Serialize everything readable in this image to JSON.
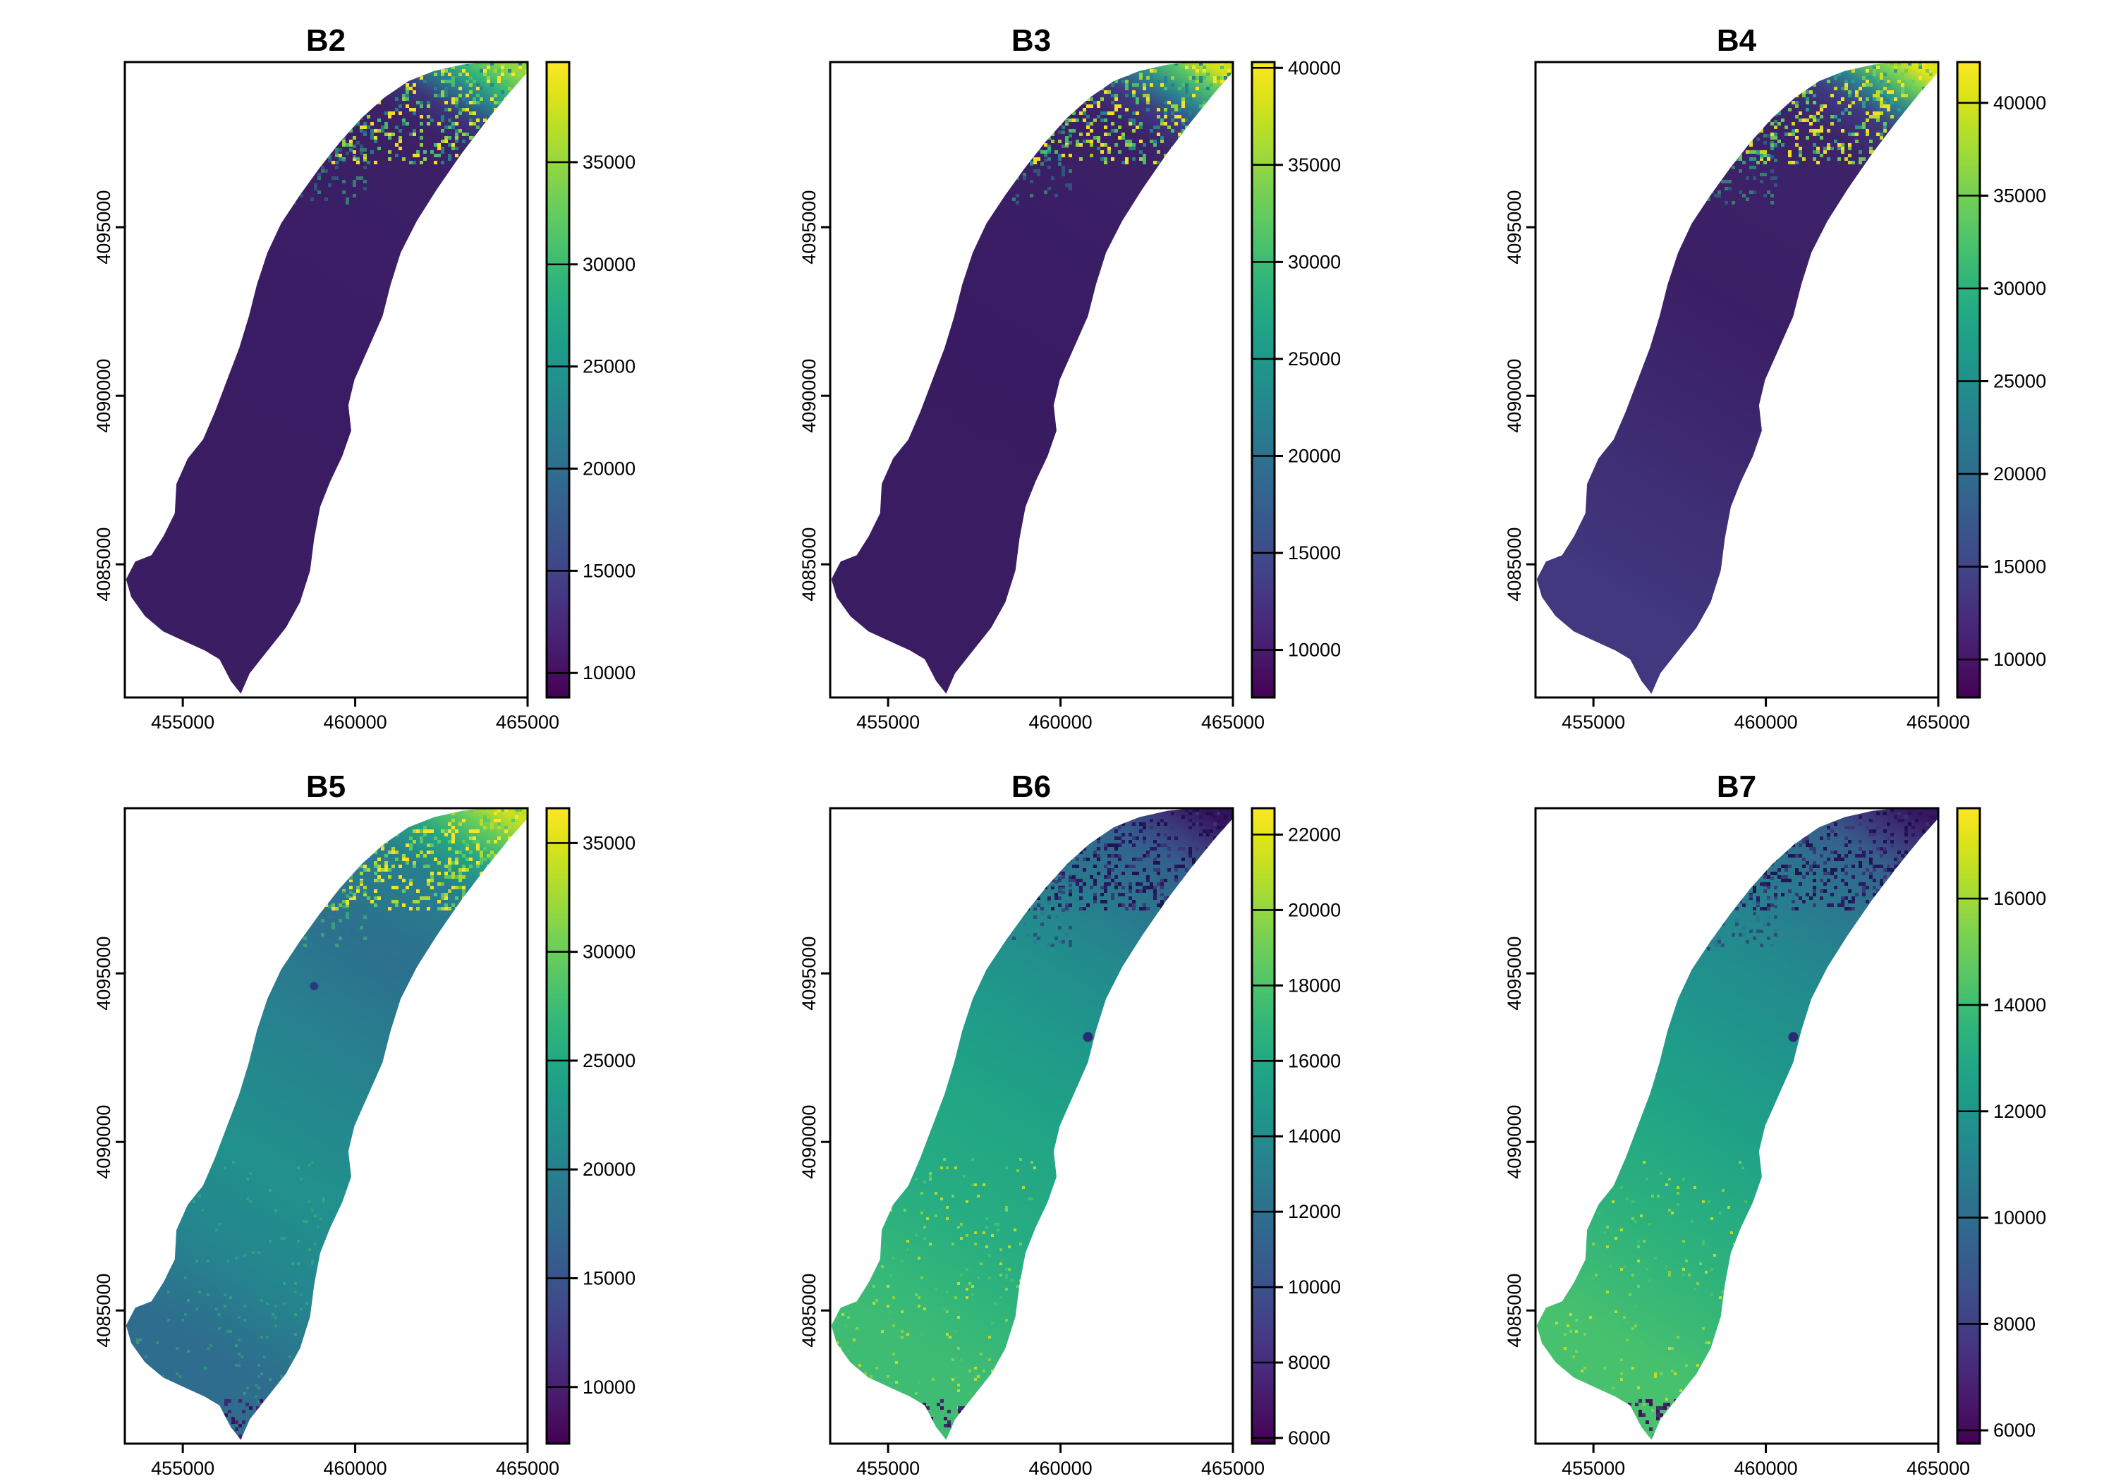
{
  "figure": {
    "background": "#ffffff",
    "panel_titles": [
      "B2",
      "B3",
      "B4",
      "B5",
      "B6",
      "B7"
    ]
  },
  "colorbar_palette": [
    "#440154",
    "#471365",
    "#482475",
    "#463480",
    "#414487",
    "#3b528b",
    "#355f8d",
    "#2f6c8e",
    "#2a788e",
    "#25848e",
    "#21918c",
    "#1e9c89",
    "#22a884",
    "#2eb37c",
    "#44bf70",
    "#5ec962",
    "#7ad151",
    "#9bd93c",
    "#bddf26",
    "#dfe318",
    "#fde725"
  ],
  "chart_data": [
    {
      "type": "heatmap",
      "title": "B2",
      "x_tick_values": [
        455000,
        460000,
        465000
      ],
      "y_tick_values": [
        4085000,
        4090000,
        4095000
      ],
      "x_range": [
        453320,
        465000
      ],
      "y_range": [
        4081050,
        4099900
      ],
      "colorbar": {
        "vmin": 8800,
        "vmax": 39900,
        "tick_values": [
          10000,
          15000,
          20000,
          25000,
          30000,
          35000
        ]
      },
      "body_gradient": [
        [
          0,
          "#90d743"
        ],
        [
          0.035,
          "#35b779"
        ],
        [
          0.07,
          "#287c8e"
        ],
        [
          0.11,
          "#3d3479"
        ],
        [
          0.16,
          "#3c2167"
        ],
        [
          0.55,
          "#3a1c64"
        ],
        [
          1,
          "#3a1d62"
        ]
      ],
      "overlays": [
        {
          "region": [
            46,
            0,
            54,
            16
          ],
          "colors": [
            "#fde725",
            "#9bd93c",
            "#4ac16d",
            "#26828e"
          ],
          "count": 520,
          "size": 5,
          "opacity": 0.95
        },
        {
          "region": [
            32,
            8,
            28,
            14
          ],
          "colors": [
            "#35b779",
            "#2a788e"
          ],
          "count": 130,
          "size": 5,
          "opacity": 0.6
        }
      ],
      "dots": []
    },
    {
      "type": "heatmap",
      "title": "B3",
      "x_tick_values": [
        455000,
        460000,
        465000
      ],
      "y_tick_values": [
        4085000,
        4090000,
        4095000
      ],
      "x_range": [
        453320,
        465000
      ],
      "y_range": [
        4081050,
        4099900
      ],
      "colorbar": {
        "vmin": 7550,
        "vmax": 40300,
        "tick_values": [
          10000,
          15000,
          20000,
          25000,
          30000,
          35000,
          40000
        ]
      },
      "body_gradient": [
        [
          0,
          "#d0e11c"
        ],
        [
          0.03,
          "#54c568"
        ],
        [
          0.07,
          "#2a818e"
        ],
        [
          0.11,
          "#3e3a80"
        ],
        [
          0.16,
          "#3c2167"
        ],
        [
          0.55,
          "#391b63"
        ],
        [
          1,
          "#391c61"
        ]
      ],
      "overlays": [
        {
          "region": [
            46,
            0,
            54,
            16
          ],
          "colors": [
            "#fde725",
            "#9bd93c",
            "#4ac16d",
            "#26828e"
          ],
          "count": 520,
          "size": 5,
          "opacity": 0.95
        },
        {
          "region": [
            32,
            8,
            28,
            14
          ],
          "colors": [
            "#35b779",
            "#2a788e"
          ],
          "count": 130,
          "size": 5,
          "opacity": 0.6
        }
      ],
      "dots": []
    },
    {
      "type": "heatmap",
      "title": "B4",
      "x_tick_values": [
        455000,
        460000,
        465000
      ],
      "y_tick_values": [
        4085000,
        4090000,
        4095000
      ],
      "x_range": [
        453320,
        465000
      ],
      "y_range": [
        4081050,
        4099900
      ],
      "colorbar": {
        "vmin": 7950,
        "vmax": 42200,
        "tick_values": [
          10000,
          15000,
          20000,
          25000,
          30000,
          35000,
          40000
        ]
      },
      "body_gradient": [
        [
          0,
          "#e5e419"
        ],
        [
          0.03,
          "#6ece58"
        ],
        [
          0.07,
          "#2d828e"
        ],
        [
          0.11,
          "#3e3a80"
        ],
        [
          0.17,
          "#3d2369"
        ],
        [
          0.5,
          "#3b1f66"
        ],
        [
          0.78,
          "#3e2d74"
        ],
        [
          1,
          "#41387f"
        ]
      ],
      "overlays": [
        {
          "region": [
            46,
            0,
            54,
            16
          ],
          "colors": [
            "#fde725",
            "#d2e21b",
            "#6ece58",
            "#2a9d8f"
          ],
          "count": 520,
          "size": 5,
          "opacity": 0.95
        },
        {
          "region": [
            32,
            8,
            28,
            14
          ],
          "colors": [
            "#35b779",
            "#2a788e"
          ],
          "count": 130,
          "size": 5,
          "opacity": 0.6
        }
      ],
      "dots": []
    },
    {
      "type": "heatmap",
      "title": "B5",
      "x_tick_values": [
        455000,
        460000,
        465000
      ],
      "y_tick_values": [
        4085000,
        4090000,
        4095000
      ],
      "x_range": [
        453320,
        465000
      ],
      "y_range": [
        4081050,
        4099900
      ],
      "colorbar": {
        "vmin": 7400,
        "vmax": 36600,
        "tick_values": [
          10000,
          15000,
          20000,
          25000,
          30000,
          35000
        ]
      },
      "body_gradient": [
        [
          0,
          "#c8e020"
        ],
        [
          0.04,
          "#63cb5f"
        ],
        [
          0.09,
          "#25a584"
        ],
        [
          0.15,
          "#277f8e"
        ],
        [
          0.3,
          "#2d708e"
        ],
        [
          0.5,
          "#26838e"
        ],
        [
          0.7,
          "#21918c"
        ],
        [
          0.85,
          "#24868e"
        ],
        [
          1,
          "#2e6d8e"
        ]
      ],
      "overlays": [
        {
          "region": [
            46,
            0,
            54,
            16
          ],
          "colors": [
            "#fde725",
            "#b5de2b",
            "#5ec962"
          ],
          "count": 500,
          "size": 5,
          "opacity": 0.95
        },
        {
          "region": [
            32,
            8,
            28,
            14
          ],
          "colors": [
            "#44bf70",
            "#2a788e"
          ],
          "count": 130,
          "size": 5,
          "opacity": 0.6
        },
        {
          "region": [
            0,
            55,
            50,
            40
          ],
          "colors": [
            "#35b779",
            "#48c16e"
          ],
          "count": 180,
          "size": 4,
          "opacity": 0.45
        },
        {
          "region": [
            23,
            93,
            13,
            7
          ],
          "colors": [
            "#440154",
            "#46196e"
          ],
          "count": 45,
          "size": 5,
          "opacity": 0.85
        }
      ],
      "dots": [
        [
          47,
          28,
          6,
          "#2b3a80"
        ]
      ]
    },
    {
      "type": "heatmap",
      "title": "B6",
      "x_tick_values": [
        455000,
        460000,
        465000
      ],
      "y_tick_values": [
        4085000,
        4090000,
        4095000
      ],
      "x_range": [
        453320,
        465000
      ],
      "y_range": [
        4081050,
        4099900
      ],
      "colorbar": {
        "vmin": 5850,
        "vmax": 22700,
        "tick_values": [
          6000,
          8000,
          10000,
          12000,
          14000,
          16000,
          18000,
          20000,
          22000
        ]
      },
      "body_gradient": [
        [
          0,
          "#34135c"
        ],
        [
          0.05,
          "#3c3a7a"
        ],
        [
          0.1,
          "#345e8d"
        ],
        [
          0.18,
          "#2b748e"
        ],
        [
          0.3,
          "#238a8d"
        ],
        [
          0.45,
          "#1f998a"
        ],
        [
          0.6,
          "#21a585"
        ],
        [
          0.78,
          "#27ad81"
        ],
        [
          0.9,
          "#32b67a"
        ],
        [
          1,
          "#3fbc73"
        ]
      ],
      "overlays": [
        {
          "region": [
            46,
            0,
            54,
            16
          ],
          "colors": [
            "#2c115f",
            "#1f0e49",
            "#3b3577"
          ],
          "count": 520,
          "size": 5,
          "opacity": 0.9
        },
        {
          "region": [
            32,
            8,
            28,
            14
          ],
          "colors": [
            "#33256d",
            "#2d708e"
          ],
          "count": 120,
          "size": 5,
          "opacity": 0.55
        },
        {
          "region": [
            0,
            55,
            52,
            42
          ],
          "colors": [
            "#d2e21b",
            "#8bd646",
            "#4ac16d"
          ],
          "count": 240,
          "size": 4,
          "opacity": 0.85
        },
        {
          "region": [
            23,
            93,
            13,
            7
          ],
          "colors": [
            "#440154",
            "#46196e"
          ],
          "count": 45,
          "size": 5,
          "opacity": 0.9
        }
      ],
      "dots": [
        [
          64,
          36,
          7,
          "#2a2a77"
        ]
      ]
    },
    {
      "type": "heatmap",
      "title": "B7",
      "x_tick_values": [
        455000,
        460000,
        465000
      ],
      "y_tick_values": [
        4085000,
        4090000,
        4095000
      ],
      "x_range": [
        453320,
        465000
      ],
      "y_range": [
        4081050,
        4099900
      ],
      "colorbar": {
        "vmin": 5750,
        "vmax": 17700,
        "tick_values": [
          6000,
          8000,
          10000,
          12000,
          14000,
          16000
        ]
      },
      "body_gradient": [
        [
          0,
          "#371760"
        ],
        [
          0.05,
          "#3d3a7b"
        ],
        [
          0.1,
          "#35608d"
        ],
        [
          0.18,
          "#2b758e"
        ],
        [
          0.32,
          "#23898e"
        ],
        [
          0.48,
          "#1f978b"
        ],
        [
          0.62,
          "#20a386"
        ],
        [
          0.8,
          "#2cb17d"
        ],
        [
          0.92,
          "#3bba75"
        ],
        [
          1,
          "#48c16e"
        ]
      ],
      "overlays": [
        {
          "region": [
            46,
            0,
            54,
            16
          ],
          "colors": [
            "#2c115f",
            "#1f0e49",
            "#3b3577"
          ],
          "count": 500,
          "size": 5,
          "opacity": 0.9
        },
        {
          "region": [
            32,
            8,
            28,
            14
          ],
          "colors": [
            "#33256d",
            "#2d708e"
          ],
          "count": 120,
          "size": 5,
          "opacity": 0.55
        },
        {
          "region": [
            0,
            55,
            52,
            42
          ],
          "colors": [
            "#d2e21b",
            "#8bd646",
            "#4ac16d"
          ],
          "count": 230,
          "size": 4,
          "opacity": 0.85
        },
        {
          "region": [
            23,
            93,
            13,
            7
          ],
          "colors": [
            "#440154",
            "#46196e"
          ],
          "count": 45,
          "size": 5,
          "opacity": 0.9
        }
      ],
      "dots": [
        [
          64,
          36,
          7,
          "#2a2a77"
        ]
      ]
    }
  ]
}
